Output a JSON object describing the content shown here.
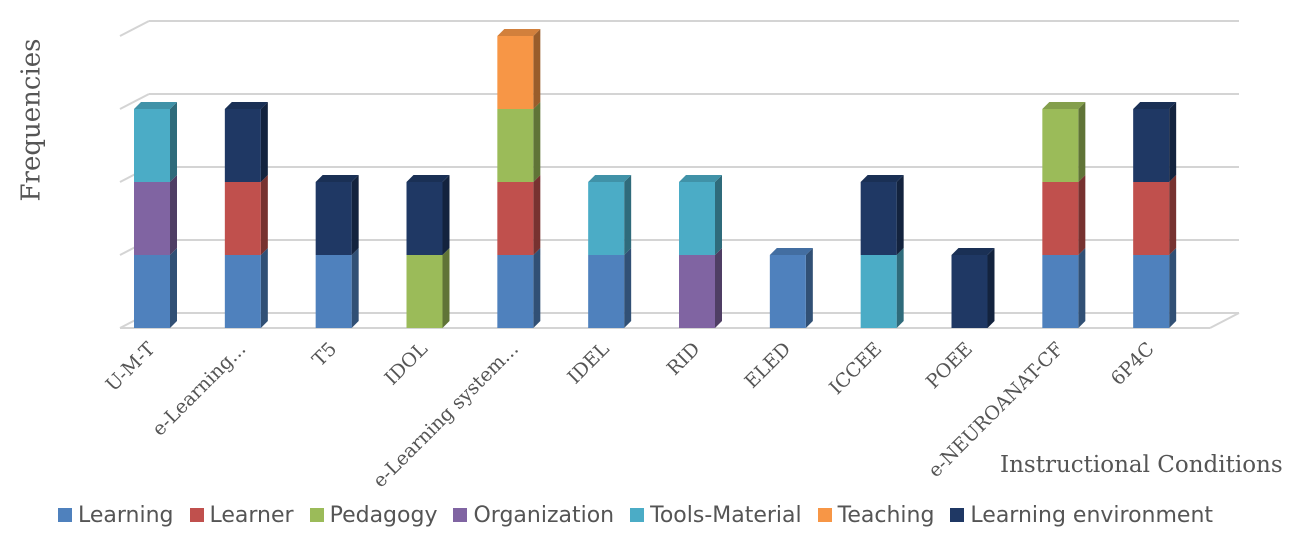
{
  "chart_data": {
    "type": "bar",
    "stacked": true,
    "style": "3d",
    "title": "",
    "ylabel": "Frequencies",
    "xlabel": "Instructional Conditions",
    "ylim": [
      0,
      4
    ],
    "grid": true,
    "legend_position": "bottom",
    "categories": [
      "U-M-T",
      "e-Learning...",
      "T5",
      "IDOL",
      "e-Learning system...",
      "IDEL",
      "RID",
      "ELED",
      "ICCEE",
      "POEE",
      "e-NEUROANAT-CF",
      "6P4C"
    ],
    "series": [
      {
        "name": "Learning",
        "color": "#4F81BD",
        "values": [
          1,
          1,
          1,
          0,
          1,
          1,
          0,
          1,
          0,
          0,
          1,
          1
        ]
      },
      {
        "name": "Learner",
        "color": "#C0504D",
        "values": [
          0,
          1,
          0,
          0,
          1,
          0,
          0,
          0,
          0,
          0,
          1,
          1
        ]
      },
      {
        "name": "Pedagogy",
        "color": "#9BBB59",
        "values": [
          0,
          0,
          0,
          1,
          1,
          0,
          0,
          0,
          0,
          0,
          1,
          0
        ]
      },
      {
        "name": "Organization",
        "color": "#8064A2",
        "values": [
          1,
          0,
          0,
          0,
          0,
          0,
          1,
          0,
          0,
          0,
          0,
          0
        ]
      },
      {
        "name": "Tools-Material",
        "color": "#4BACC6",
        "values": [
          1,
          0,
          0,
          0,
          0,
          1,
          1,
          0,
          1,
          0,
          0,
          0
        ]
      },
      {
        "name": "Teaching",
        "color": "#F79646",
        "values": [
          0,
          0,
          0,
          0,
          1,
          0,
          0,
          0,
          0,
          0,
          0,
          0
        ]
      },
      {
        "name": "Learning environment",
        "color": "#1F3864",
        "values": [
          0,
          1,
          1,
          1,
          0,
          0,
          0,
          0,
          1,
          1,
          0,
          1
        ]
      }
    ]
  }
}
